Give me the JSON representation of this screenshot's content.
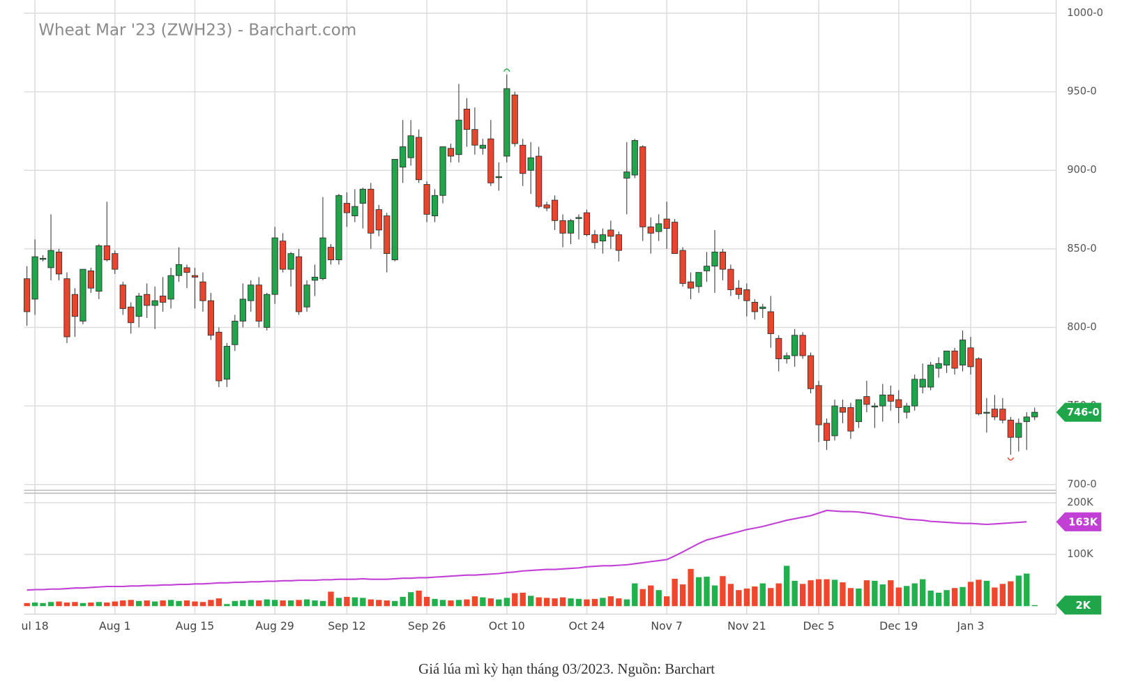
{
  "chart_data": {
    "type": "candlestick",
    "title": "Wheat Mar '23 (ZWH23) - Barchart.com",
    "categories": [
      null,
      "ul 18",
      null,
      null,
      null,
      null,
      null,
      null,
      null,
      null,
      null,
      "Aug 1",
      null,
      null,
      null,
      null,
      null,
      null,
      null,
      null,
      null,
      "Aug 15",
      null,
      null,
      null,
      null,
      null,
      null,
      null,
      null,
      null,
      "Aug 29",
      null,
      null,
      null,
      null,
      null,
      null,
      null,
      null,
      "Sep 12",
      null,
      null,
      null,
      null,
      null,
      null,
      null,
      null,
      null,
      "Sep 26",
      null,
      null,
      null,
      null,
      null,
      null,
      null,
      null,
      null,
      "Oct 10",
      null,
      null,
      null,
      null,
      null,
      null,
      null,
      null,
      null,
      "Oct 24",
      null,
      null,
      null,
      null,
      null,
      null,
      null,
      null,
      null,
      "Nov 7",
      null,
      null,
      null,
      null,
      null,
      null,
      null,
      null,
      null,
      "Nov 21",
      null,
      null,
      null,
      null,
      null,
      null,
      null,
      null,
      "Dec 5",
      null,
      null,
      null,
      null,
      null,
      null,
      null,
      null,
      null,
      "Dec 19",
      null,
      null,
      null,
      null,
      null,
      null,
      null,
      null,
      "Jan 3",
      null,
      null,
      null,
      null,
      null,
      null,
      null,
      null
    ],
    "open": [
      831,
      818,
      844,
      838,
      848,
      831,
      821,
      804,
      836,
      823,
      852,
      847,
      827,
      813,
      807,
      821,
      814,
      820,
      818,
      833,
      838,
      833,
      829,
      817,
      797,
      767,
      789,
      804,
      817,
      827,
      800,
      821,
      855,
      837,
      845,
      813,
      830,
      831,
      851,
      843,
      879,
      871,
      879,
      888,
      875,
      871,
      843,
      902,
      908,
      921,
      891,
      871,
      884,
      914,
      910,
      939,
      926,
      914,
      920,
      896,
      909,
      948,
      916,
      900,
      909,
      878,
      881,
      868,
      860,
      870,
      873,
      859,
      855,
      862,
      859,
      895,
      897,
      915,
      864,
      861,
      869,
      867,
      849,
      829,
      826,
      836,
      839,
      848,
      837,
      825,
      824,
      816,
      812,
      810,
      793,
      780,
      782,
      795,
      782,
      763,
      739,
      731,
      749,
      749,
      740,
      756,
      750,
      750,
      757,
      754,
      746,
      750,
      762,
      762,
      774,
      776,
      785,
      776,
      787,
      780,
      746,
      748,
      748,
      741,
      730,
      740,
      743
    ],
    "high": [
      839,
      856,
      846,
      872,
      850,
      835,
      825,
      837,
      838,
      853,
      880,
      849,
      829,
      816,
      822,
      828,
      826,
      832,
      838,
      851,
      840,
      838,
      835,
      822,
      800,
      790,
      808,
      828,
      830,
      832,
      822,
      864,
      860,
      848,
      850,
      830,
      840,
      883,
      853,
      885,
      886,
      888,
      889,
      892,
      878,
      873,
      907,
      932,
      932,
      926,
      893,
      888,
      915,
      917,
      955,
      946,
      940,
      920,
      932,
      905,
      961,
      950,
      920,
      918,
      915,
      880,
      884,
      872,
      869,
      872,
      875,
      862,
      863,
      868,
      861,
      918,
      920,
      916,
      870,
      872,
      880,
      869,
      851,
      835,
      835,
      848,
      862,
      850,
      840,
      830,
      828,
      818,
      815,
      820,
      795,
      784,
      799,
      797,
      784,
      766,
      742,
      754,
      754,
      752,
      754,
      766,
      752,
      764,
      763,
      760,
      752,
      770,
      777,
      778,
      781,
      785,
      787,
      798,
      794,
      781,
      755,
      757,
      755,
      743,
      742,
      746,
      749
    ],
    "low": [
      801,
      808,
      842,
      830,
      830,
      790,
      794,
      802,
      822,
      818,
      842,
      834,
      808,
      796,
      800,
      806,
      799,
      810,
      812,
      829,
      825,
      812,
      810,
      792,
      762,
      762,
      785,
      800,
      810,
      800,
      798,
      815,
      835,
      826,
      808,
      810,
      820,
      830,
      840,
      840,
      864,
      867,
      863,
      850,
      858,
      835,
      842,
      892,
      903,
      892,
      867,
      867,
      879,
      905,
      905,
      915,
      910,
      910,
      890,
      887,
      905,
      915,
      890,
      885,
      876,
      874,
      862,
      851,
      853,
      856,
      858,
      850,
      847,
      850,
      842,
      872,
      895,
      855,
      847,
      855,
      850,
      847,
      826,
      818,
      822,
      829,
      822,
      830,
      820,
      818,
      807,
      805,
      806,
      787,
      772,
      777,
      775,
      780,
      758,
      727,
      722,
      728,
      739,
      729,
      736,
      746,
      736,
      740,
      747,
      739,
      742,
      747,
      758,
      760,
      768,
      771,
      770,
      772,
      770,
      744,
      733,
      741,
      739,
      719,
      721,
      722,
      741
    ],
    "close": [
      810,
      845,
      844,
      849,
      834,
      794,
      807,
      837,
      825,
      852,
      843,
      837,
      812,
      803,
      820,
      814,
      817,
      816,
      833,
      840,
      835,
      832,
      817,
      795,
      766,
      788,
      804,
      818,
      827,
      804,
      821,
      857,
      837,
      847,
      810,
      827,
      832,
      857,
      843,
      884,
      873,
      877,
      888,
      860,
      862,
      847,
      907,
      915,
      922,
      894,
      872,
      884,
      915,
      909,
      932,
      926,
      916,
      916,
      892,
      896,
      952,
      917,
      898,
      908,
      877,
      876,
      868,
      860,
      868,
      870,
      859,
      854,
      859,
      858,
      849,
      899,
      919,
      864,
      860,
      866,
      863,
      847,
      828,
      825,
      835,
      839,
      848,
      837,
      824,
      821,
      817,
      810,
      813,
      796,
      780,
      782,
      795,
      782,
      761,
      738,
      728,
      750,
      746,
      734,
      754,
      751,
      750,
      757,
      753,
      749,
      750,
      767,
      767,
      776,
      777,
      785,
      774,
      792,
      775,
      745,
      746,
      743,
      741,
      730,
      739,
      743,
      746
    ],
    "up_color": "#1fa64a",
    "down_color": "#e8452c",
    "ylim": [
      700,
      1000
    ],
    "yticks": [
      {
        "value": 700,
        "label": "700-0"
      },
      {
        "value": 750,
        "label": "750-0"
      },
      {
        "value": 800,
        "label": "800-0"
      },
      {
        "value": 850,
        "label": "850-0"
      },
      {
        "value": 900,
        "label": "900-0"
      },
      {
        "value": 950,
        "label": "950-0"
      },
      {
        "value": 1000,
        "label": "1000-0"
      }
    ],
    "grid": true,
    "volume": [
      6,
      7,
      6,
      8,
      9,
      7,
      8,
      6,
      7,
      8,
      7,
      9,
      11,
      12,
      10,
      11,
      9,
      11,
      12,
      10,
      11,
      9,
      8,
      12,
      15,
      4,
      10,
      11,
      12,
      11,
      13,
      12,
      11,
      11,
      12,
      13,
      11,
      10,
      28,
      16,
      18,
      17,
      16,
      13,
      12,
      11,
      10,
      18,
      27,
      30,
      18,
      14,
      12,
      11,
      12,
      13,
      19,
      17,
      15,
      13,
      16,
      25,
      26,
      20,
      17,
      16,
      15,
      17,
      15,
      14,
      13,
      14,
      16,
      19,
      15,
      13,
      44,
      33,
      40,
      31,
      19,
      53,
      42,
      72,
      56,
      57,
      40,
      58,
      43,
      31,
      34,
      38,
      44,
      35,
      44,
      78,
      49,
      43,
      50,
      52,
      52,
      51,
      46,
      35,
      34,
      50,
      49,
      42,
      50,
      36,
      39,
      44,
      52,
      30,
      26,
      31,
      35,
      37,
      47,
      51,
      49,
      36,
      43,
      48,
      59,
      63,
      2
    ],
    "open_interest": [
      31,
      32,
      32,
      33,
      33,
      34,
      35,
      35,
      36,
      37,
      38,
      38,
      38,
      39,
      39,
      40,
      40,
      41,
      41,
      42,
      42,
      43,
      43,
      44,
      45,
      45,
      46,
      46,
      47,
      47,
      48,
      48,
      49,
      49,
      50,
      50,
      50,
      51,
      51,
      52,
      52,
      52,
      53,
      52,
      52,
      52,
      53,
      54,
      54,
      55,
      55,
      56,
      57,
      58,
      59,
      60,
      60,
      61,
      62,
      63,
      65,
      66,
      68,
      69,
      70,
      71,
      71,
      72,
      73,
      74,
      76,
      77,
      78,
      78,
      79,
      80,
      82,
      84,
      86,
      88,
      90,
      97,
      105,
      113,
      121,
      128,
      132,
      136,
      140,
      144,
      148,
      151,
      154,
      158,
      162,
      166,
      169,
      172,
      175,
      180,
      185,
      184,
      183,
      183,
      182,
      180,
      178,
      175,
      173,
      171,
      168,
      167,
      166,
      164,
      163,
      162,
      161,
      160,
      160,
      159,
      158,
      159,
      160,
      161,
      162,
      163,
      null
    ],
    "open_interest_color": "#c23fd6",
    "y2lim": [
      0,
      200
    ],
    "y2ticks": [
      {
        "value": 100,
        "label": "100K"
      },
      {
        "value": 200,
        "label": "200K"
      }
    ],
    "last_price": {
      "value": 746,
      "label": "746-0"
    },
    "last_open_interest": {
      "value": 163,
      "label": "163K"
    },
    "last_volume": {
      "value": 2,
      "label": "2K"
    }
  },
  "caption": "Giá lúa mì kỳ hạn tháng 03/2023. Nguồn: Barchart"
}
